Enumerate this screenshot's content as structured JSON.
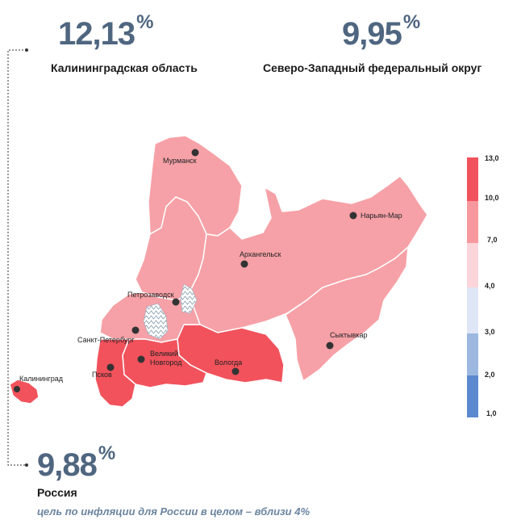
{
  "headline": {
    "kaliningrad": {
      "value": "12,13",
      "unit": "%",
      "caption": "Калининградская область"
    },
    "nwfd": {
      "value": "9,95",
      "unit": "%",
      "caption": "Северо-Западный федеральный округ"
    },
    "russia": {
      "value": "9,88",
      "unit": "%",
      "caption": "Россия",
      "note": "цель по инфляции для России в целом – вблизи 4%"
    }
  },
  "cities": {
    "murmansk": "Мурманск",
    "naryan_mar": "Нарьян-Мар",
    "arkhangelsk": "Архангельск",
    "petrozavodsk": "Петрозаводск",
    "spb": "Санкт-Петербург",
    "veliky_novgorod_1": "Великий",
    "veliky_novgorod_2": "Новгород",
    "vologda": "Вологда",
    "pskov": "Псков",
    "syktyvkar": "Сыктывкар",
    "kaliningrad": "Калининград"
  },
  "legend": {
    "ticks": [
      "13,0",
      "10,0",
      "7,0",
      "4,0",
      "3,0",
      "2,0",
      "1,0"
    ],
    "colors": [
      "#f2525c",
      "#f7989f",
      "#fbd5da",
      "#dfe6f5",
      "#9db8e0",
      "#5b88cf"
    ]
  },
  "colors": {
    "high": "#f2525c",
    "medium": "#f6a1a7",
    "accent": "#4f6680"
  }
}
